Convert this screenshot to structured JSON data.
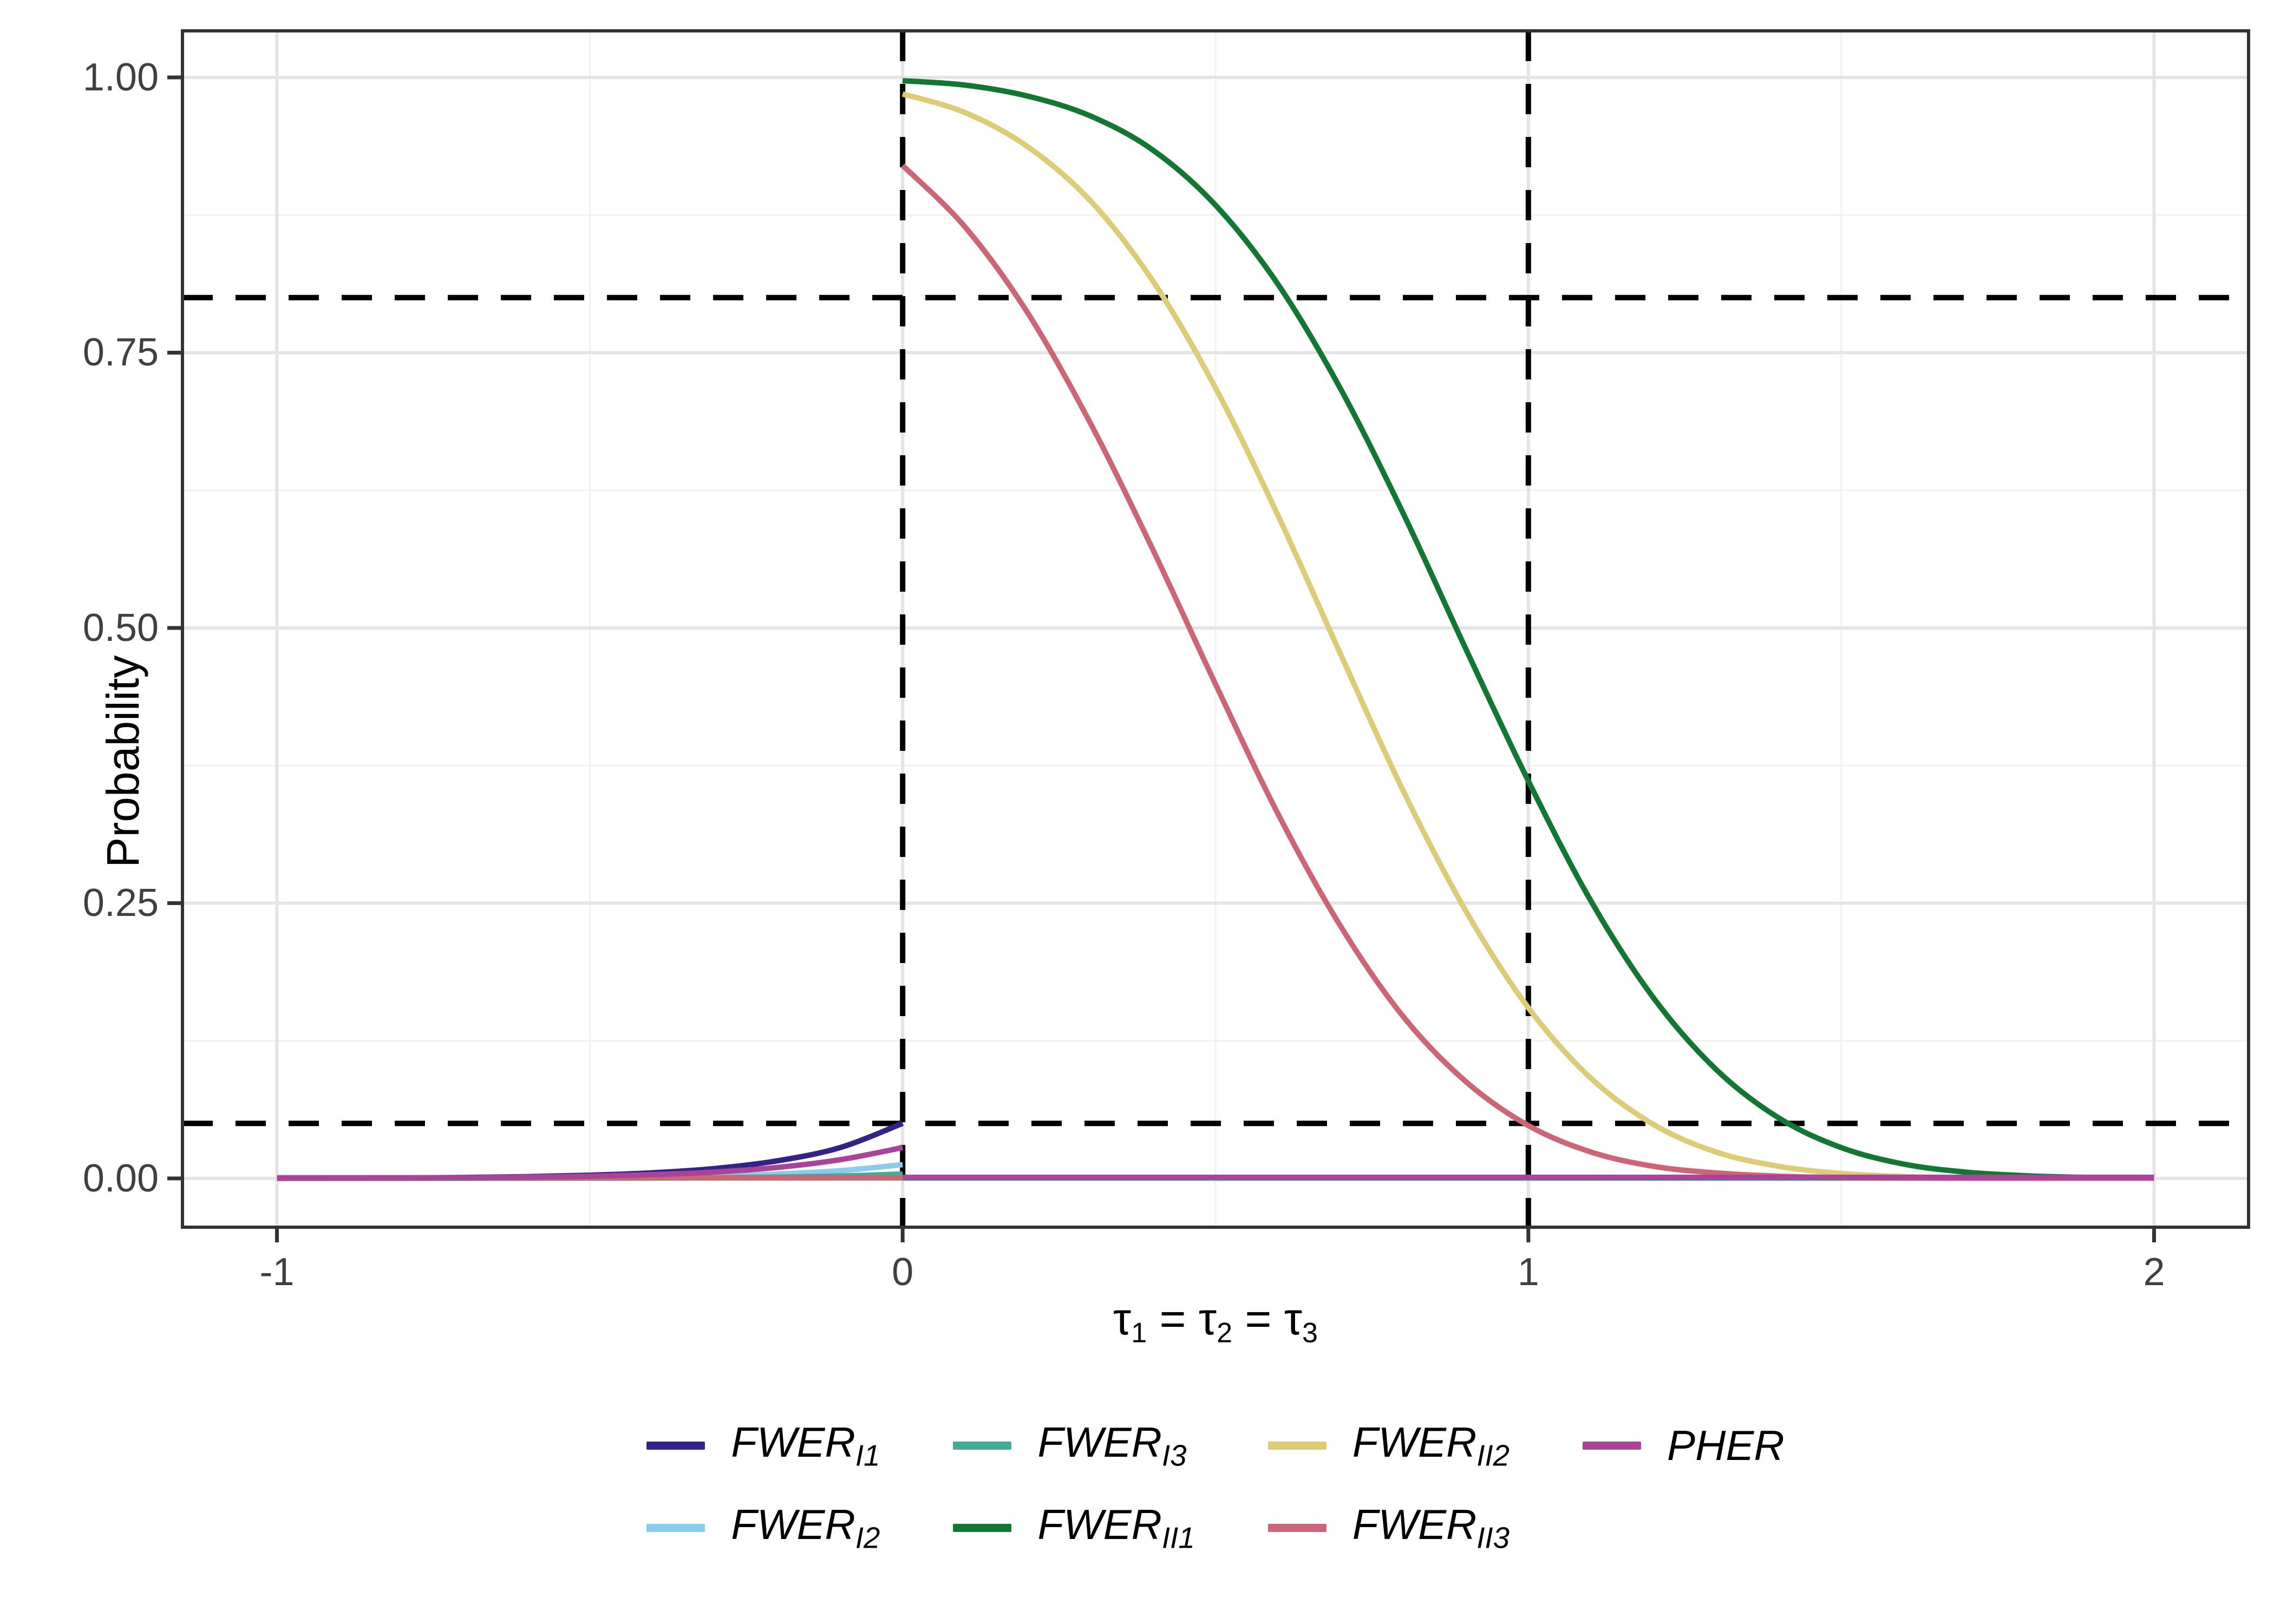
{
  "chart_data": {
    "type": "line",
    "title": "",
    "ylabel": "Probability",
    "xlabel_parts": [
      {
        "text": "τ",
        "sub": "1"
      },
      {
        "text": " = ",
        "sub": ""
      },
      {
        "text": "τ",
        "sub": "2"
      },
      {
        "text": " = ",
        "sub": ""
      },
      {
        "text": "τ",
        "sub": "3"
      }
    ],
    "x_ticks": [
      {
        "value": -1,
        "label": "-1"
      },
      {
        "value": 0,
        "label": "0"
      },
      {
        "value": 1,
        "label": "1"
      },
      {
        "value": 2,
        "label": "2"
      }
    ],
    "y_ticks": [
      {
        "value": 0.0,
        "label": "0.00"
      },
      {
        "value": 0.25,
        "label": "0.25"
      },
      {
        "value": 0.5,
        "label": "0.50"
      },
      {
        "value": 0.75,
        "label": "0.75"
      },
      {
        "value": 1.0,
        "label": "1.00"
      }
    ],
    "x_minor": [
      -0.5,
      0.5,
      1.5
    ],
    "y_minor": [
      0.125,
      0.375,
      0.625,
      0.875
    ],
    "xlim": [
      -1.151,
      2.151
    ],
    "ylim": [
      -0.0443,
      1.0423
    ],
    "grid": {
      "major_color": "#e4e4e4",
      "minor_color": "#f1f1f1",
      "grid_on": true
    },
    "reference_lines": {
      "horizontal": [
        0.05,
        0.8
      ],
      "vertical": [
        0,
        1
      ],
      "style": "dashed",
      "color": "#000000"
    },
    "legend": {
      "position": "bottom",
      "rows": 2,
      "flow": "column-major"
    },
    "series": [
      {
        "id": "FWER_I1",
        "label": "FWER",
        "label_sub": "I1",
        "color": "#332288",
        "segments": [
          [
            [
              -1,
              0.0002
            ],
            [
              -0.9,
              0.0003
            ],
            [
              -0.8,
              0.0005
            ],
            [
              -0.7,
              0.0009
            ],
            [
              -0.6,
              0.0016
            ],
            [
              -0.5,
              0.0029
            ],
            [
              -0.4,
              0.0051
            ],
            [
              -0.3,
              0.009
            ],
            [
              -0.2,
              0.016
            ],
            [
              -0.1,
              0.028
            ],
            [
              0,
              0.05
            ]
          ],
          [
            [
              0,
              0.0005
            ],
            [
              1,
              0.0005
            ],
            [
              2,
              0.0005
            ]
          ]
        ]
      },
      {
        "id": "FWER_I2",
        "label": "FWER",
        "label_sub": "I2",
        "color": "#88CCEE",
        "segments": [
          [
            [
              -1,
              0.0001
            ],
            [
              -0.8,
              0.0002
            ],
            [
              -0.6,
              0.0004
            ],
            [
              -0.5,
              0.0007
            ],
            [
              -0.4,
              0.0012
            ],
            [
              -0.3,
              0.0022
            ],
            [
              -0.2,
              0.004
            ],
            [
              -0.1,
              0.007
            ],
            [
              0,
              0.0125
            ]
          ],
          [
            [
              0,
              0.0004
            ],
            [
              1,
              0.0004
            ],
            [
              2,
              0.0004
            ]
          ]
        ]
      },
      {
        "id": "FWER_I3",
        "label": "FWER",
        "label_sub": "I3",
        "color": "#44AA99",
        "segments": [
          [
            [
              -1,
              0.0001
            ],
            [
              -0.6,
              0.0002
            ],
            [
              -0.4,
              0.0004
            ],
            [
              -0.3,
              0.0007
            ],
            [
              -0.2,
              0.0012
            ],
            [
              -0.1,
              0.0022
            ],
            [
              0,
              0.004
            ]
          ],
          [
            [
              0,
              0.0003
            ],
            [
              1,
              0.0003
            ],
            [
              2,
              0.0003
            ]
          ]
        ]
      },
      {
        "id": "FWER_II1",
        "label": "FWER",
        "label_sub": "II1",
        "color": "#117733",
        "segments": [
          [
            [
              -1,
              0.0005
            ],
            [
              -0.5,
              0.0005
            ],
            [
              0,
              0.0005
            ]
          ],
          [
            [
              0,
              0.997
            ],
            [
              0.1,
              0.993
            ],
            [
              0.2,
              0.983
            ],
            [
              0.3,
              0.965
            ],
            [
              0.4,
              0.934
            ],
            [
              0.5,
              0.884
            ],
            [
              0.6,
              0.812
            ],
            [
              0.7,
              0.717
            ],
            [
              0.8,
              0.604
            ],
            [
              0.9,
              0.481
            ],
            [
              1,
              0.361
            ],
            [
              1.1,
              0.252
            ],
            [
              1.2,
              0.164
            ],
            [
              1.3,
              0.099
            ],
            [
              1.4,
              0.055
            ],
            [
              1.5,
              0.028
            ],
            [
              1.6,
              0.013
            ],
            [
              1.7,
              0.0057
            ],
            [
              1.8,
              0.0023
            ],
            [
              1.9,
              0.0009
            ],
            [
              2,
              0.0004
            ]
          ]
        ]
      },
      {
        "id": "FWER_II2",
        "label": "FWER",
        "label_sub": "II2",
        "color": "#DDCC77",
        "segments": [
          [
            [
              -1,
              0.0006
            ],
            [
              -0.5,
              0.0006
            ],
            [
              0,
              0.0006
            ]
          ],
          [
            [
              0,
              0.985
            ],
            [
              0.1,
              0.968
            ],
            [
              0.2,
              0.937
            ],
            [
              0.3,
              0.888
            ],
            [
              0.4,
              0.815
            ],
            [
              0.5,
              0.718
            ],
            [
              0.6,
              0.602
            ],
            [
              0.7,
              0.476
            ],
            [
              0.8,
              0.352
            ],
            [
              0.9,
              0.243
            ],
            [
              1,
              0.155
            ],
            [
              1.1,
              0.091
            ],
            [
              1.2,
              0.049
            ],
            [
              1.3,
              0.024
            ],
            [
              1.4,
              0.011
            ],
            [
              1.5,
              0.0045
            ],
            [
              1.6,
              0.0017
            ],
            [
              1.7,
              0.0006
            ],
            [
              1.8,
              0.0003
            ],
            [
              1.9,
              0.0002
            ],
            [
              2,
              0.0002
            ]
          ]
        ]
      },
      {
        "id": "FWER_II3",
        "label": "FWER",
        "label_sub": "II3",
        "color": "#CC6677",
        "segments": [
          [
            [
              -1,
              0.0007
            ],
            [
              -0.5,
              0.0007
            ],
            [
              0,
              0.0007
            ]
          ],
          [
            [
              0,
              0.92
            ],
            [
              0.1,
              0.864
            ],
            [
              0.2,
              0.786
            ],
            [
              0.3,
              0.686
            ],
            [
              0.4,
              0.571
            ],
            [
              0.5,
              0.449
            ],
            [
              0.6,
              0.331
            ],
            [
              0.7,
              0.229
            ],
            [
              0.8,
              0.147
            ],
            [
              0.9,
              0.088
            ],
            [
              1,
              0.048
            ],
            [
              1.1,
              0.024
            ],
            [
              1.2,
              0.011
            ],
            [
              1.3,
              0.005
            ],
            [
              1.4,
              0.002
            ],
            [
              1.5,
              0.0008
            ],
            [
              1.6,
              0.0004
            ],
            [
              1.7,
              0.0002
            ],
            [
              1.8,
              0.0002
            ],
            [
              1.9,
              0.0002
            ],
            [
              2,
              0.0002
            ]
          ]
        ]
      },
      {
        "id": "PHER",
        "label": "PHER",
        "label_sub": "",
        "color": "#AA4499",
        "segments": [
          [
            [
              -1,
              0.0002
            ],
            [
              -0.9,
              0.0003
            ],
            [
              -0.8,
              0.0004
            ],
            [
              -0.7,
              0.0007
            ],
            [
              -0.6,
              0.0012
            ],
            [
              -0.5,
              0.002
            ],
            [
              -0.4,
              0.0034
            ],
            [
              -0.3,
              0.0058
            ],
            [
              -0.2,
              0.01
            ],
            [
              -0.1,
              0.017
            ],
            [
              0,
              0.028
            ]
          ],
          [
            [
              0,
              0.001
            ],
            [
              1,
              0.001
            ],
            [
              2,
              0.001
            ]
          ]
        ]
      }
    ]
  }
}
